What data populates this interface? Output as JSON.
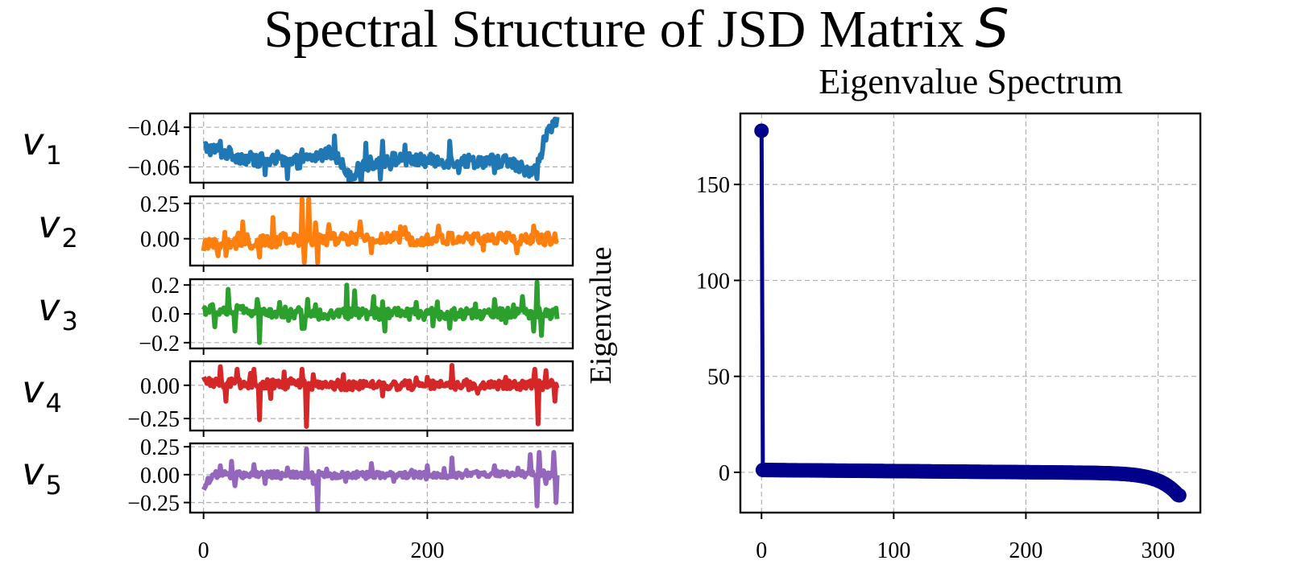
{
  "figure": {
    "title": "Spectral Structure of JSD Matrix",
    "title_symbol": "S"
  },
  "chart_data": [
    {
      "type": "line",
      "title": "",
      "xlabel": "",
      "ylabel": "",
      "series": [
        {
          "name": "v",
          "subscript": "1",
          "color": "#1f77b4",
          "ylim": [
            -0.068,
            -0.033
          ],
          "yticks": [
            -0.06,
            -0.04
          ],
          "ytick_labels": [
            "−0.06",
            "−0.04"
          ],
          "anchors": [
            [
              0,
              -0.05
            ],
            [
              20,
              -0.053
            ],
            [
              40,
              -0.056
            ],
            [
              60,
              -0.057
            ],
            [
              80,
              -0.058
            ],
            [
              100,
              -0.055
            ],
            [
              115,
              -0.052
            ],
            [
              125,
              -0.06
            ],
            [
              130,
              -0.064
            ],
            [
              150,
              -0.058
            ],
            [
              170,
              -0.056
            ],
            [
              200,
              -0.057
            ],
            [
              240,
              -0.057
            ],
            [
              270,
              -0.057
            ],
            [
              290,
              -0.062
            ],
            [
              300,
              -0.058
            ],
            [
              305,
              -0.045
            ],
            [
              312,
              -0.04
            ],
            [
              316,
              -0.034
            ]
          ],
          "noise": 0.0035,
          "spikes": [
            [
              15,
              -0.047
            ],
            [
              55,
              -0.064
            ],
            [
              75,
              -0.066
            ],
            [
              135,
              -0.066
            ],
            [
              145,
              -0.048
            ],
            [
              160,
              -0.047
            ],
            [
              180,
              -0.049
            ],
            [
              220,
              -0.047
            ],
            [
              228,
              -0.063
            ],
            [
              260,
              -0.063
            ],
            [
              298,
              -0.066
            ]
          ]
        },
        {
          "name": "v",
          "subscript": "2",
          "color": "#ff7f0e",
          "ylim": [
            -0.19,
            0.3
          ],
          "yticks": [
            0.0,
            0.25
          ],
          "ytick_labels": [
            "0.00",
            "0.25"
          ],
          "anchors": [
            [
              0,
              -0.05
            ],
            [
              100,
              0.0
            ],
            [
              200,
              0.0
            ],
            [
              316,
              0.0
            ]
          ],
          "noise": 0.045,
          "spikes": [
            [
              20,
              -0.12
            ],
            [
              35,
              0.12
            ],
            [
              50,
              -0.13
            ],
            [
              62,
              0.15
            ],
            [
              88,
              0.28
            ],
            [
              90,
              -0.17
            ],
            [
              94,
              0.28
            ],
            [
              102,
              -0.17
            ],
            [
              112,
              0.1
            ],
            [
              140,
              0.12
            ],
            [
              150,
              -0.1
            ],
            [
              180,
              0.08
            ],
            [
              210,
              0.09
            ],
            [
              250,
              -0.08
            ],
            [
              280,
              -0.1
            ],
            [
              295,
              0.09
            ]
          ]
        },
        {
          "name": "v",
          "subscript": "3",
          "color": "#2ca02c",
          "ylim": [
            -0.24,
            0.24
          ],
          "yticks": [
            -0.2,
            0.0,
            0.2
          ],
          "ytick_labels": [
            "−0.2",
            "0.0",
            "0.2"
          ],
          "anchors": [
            [
              0,
              0.03
            ],
            [
              100,
              0.0
            ],
            [
              200,
              0.0
            ],
            [
              316,
              0.0
            ]
          ],
          "noise": 0.04,
          "spikes": [
            [
              10,
              -0.09
            ],
            [
              22,
              0.17
            ],
            [
              28,
              -0.12
            ],
            [
              48,
              0.1
            ],
            [
              50,
              -0.2
            ],
            [
              68,
              0.08
            ],
            [
              90,
              -0.1
            ],
            [
              128,
              0.2
            ],
            [
              135,
              0.16
            ],
            [
              152,
              0.12
            ],
            [
              162,
              -0.12
            ],
            [
              190,
              0.08
            ],
            [
              220,
              -0.1
            ],
            [
              260,
              0.1
            ],
            [
              285,
              0.12
            ],
            [
              295,
              -0.12
            ],
            [
              298,
              0.22
            ],
            [
              302,
              -0.15
            ]
          ]
        },
        {
          "name": "v",
          "subscript": "4",
          "color": "#d62728",
          "ylim": [
            -0.34,
            0.18
          ],
          "yticks": [
            -0.25,
            0.0
          ],
          "ytick_labels": [
            "−0.25",
            "0.00"
          ],
          "anchors": [
            [
              0,
              0.02
            ],
            [
              100,
              0.0
            ],
            [
              200,
              0.0
            ],
            [
              316,
              0.0
            ]
          ],
          "noise": 0.035,
          "spikes": [
            [
              15,
              0.14
            ],
            [
              20,
              -0.12
            ],
            [
              30,
              0.12
            ],
            [
              45,
              0.12
            ],
            [
              50,
              -0.26
            ],
            [
              60,
              -0.1
            ],
            [
              72,
              0.1
            ],
            [
              88,
              0.12
            ],
            [
              92,
              -0.31
            ],
            [
              98,
              0.08
            ],
            [
              125,
              0.08
            ],
            [
              160,
              -0.08
            ],
            [
              200,
              0.06
            ],
            [
              222,
              0.15
            ],
            [
              245,
              -0.06
            ],
            [
              270,
              0.06
            ],
            [
              296,
              0.12
            ],
            [
              299,
              -0.29
            ],
            [
              306,
              0.11
            ],
            [
              314,
              -0.12
            ]
          ]
        },
        {
          "name": "v",
          "subscript": "5",
          "color": "#9467bd",
          "ylim": [
            -0.34,
            0.28
          ],
          "yticks": [
            -0.25,
            0.0,
            0.25
          ],
          "ytick_labels": [
            "−0.25",
            "0.00",
            "0.25"
          ],
          "anchors": [
            [
              0,
              -0.12
            ],
            [
              8,
              0.0
            ],
            [
              100,
              0.0
            ],
            [
              200,
              0.0
            ],
            [
              316,
              0.0
            ]
          ],
          "noise": 0.03,
          "spikes": [
            [
              15,
              0.08
            ],
            [
              25,
              0.12
            ],
            [
              28,
              -0.1
            ],
            [
              45,
              0.09
            ],
            [
              55,
              -0.08
            ],
            [
              75,
              0.06
            ],
            [
              92,
              0.23
            ],
            [
              98,
              -0.08
            ],
            [
              102,
              -0.32
            ],
            [
              110,
              0.05
            ],
            [
              150,
              0.1
            ],
            [
              170,
              -0.06
            ],
            [
              200,
              0.08
            ],
            [
              222,
              0.15
            ],
            [
              260,
              0.08
            ],
            [
              292,
              0.18
            ],
            [
              298,
              -0.28
            ],
            [
              300,
              0.2
            ],
            [
              306,
              -0.08
            ],
            [
              313,
              0.2
            ],
            [
              315,
              -0.25
            ]
          ]
        }
      ],
      "x_range": [
        0,
        316
      ],
      "xlim": [
        -12,
        330
      ],
      "xticks": [
        0,
        200
      ],
      "xtick_labels": [
        "0",
        "200"
      ],
      "grid": true
    },
    {
      "type": "scatter",
      "title": "Eigenvalue Spectrum",
      "xlabel": "",
      "ylabel": "Eigenvalue",
      "color": "#00008b",
      "xlim": [
        -16,
        332
      ],
      "ylim": [
        -21,
        187
      ],
      "xticks": [
        0,
        100,
        200,
        300
      ],
      "xtick_labels": [
        "0",
        "100",
        "200",
        "300"
      ],
      "yticks": [
        0,
        50,
        100,
        150
      ],
      "ytick_labels": [
        "0",
        "50",
        "100",
        "150"
      ],
      "grid": true,
      "top_eigenvalue": 178,
      "n_eigenvalues": 317,
      "last_eigenvalue": -12
    }
  ]
}
